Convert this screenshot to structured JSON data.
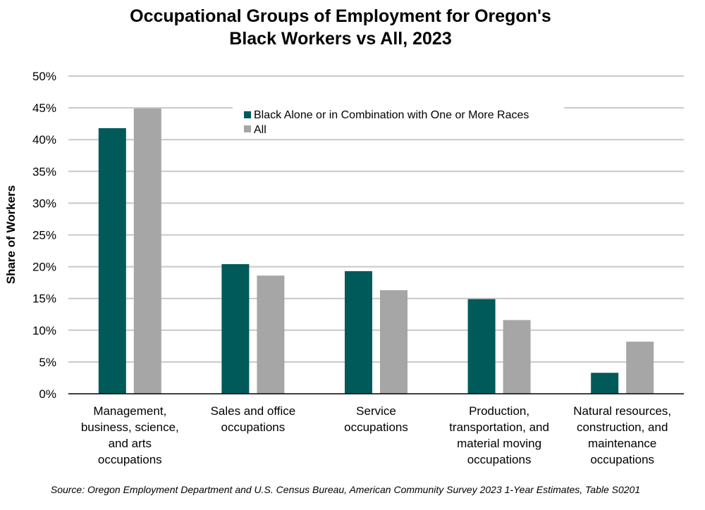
{
  "chart_data": {
    "type": "bar",
    "title": [
      "Occupational Groups of Employment for Oregon's",
      "Black Workers vs All, 2023"
    ],
    "xlabel": "",
    "ylabel": "Share of Workers",
    "ylim": [
      0,
      50
    ],
    "yticks": [
      "0%",
      "5%",
      "10%",
      "15%",
      "20%",
      "25%",
      "30%",
      "35%",
      "40%",
      "45%",
      "50%"
    ],
    "grid": true,
    "legend_placement": "top-center",
    "categories": [
      [
        "Management,",
        "business, science,",
        "and arts",
        "occupations"
      ],
      [
        "Sales and office",
        "occupations"
      ],
      [
        "Service",
        "occupations"
      ],
      [
        "Production,",
        "transportation, and",
        "material moving",
        "occupations"
      ],
      [
        "Natural resources,",
        "construction, and",
        "maintenance",
        "occupations"
      ]
    ],
    "series": [
      {
        "name": "Black Alone or in Combination with One or More Races",
        "color": "#005a5a",
        "values": [
          41.8,
          20.4,
          19.3,
          14.9,
          3.3
        ]
      },
      {
        "name": "All",
        "color": "#a6a6a6",
        "values": [
          44.9,
          18.6,
          16.3,
          11.6,
          8.2
        ]
      }
    ],
    "source": "Source: Oregon Employment Department and U.S. Census Bureau, American Community Survey 2023 1-Year Estimates, Table S0201"
  }
}
